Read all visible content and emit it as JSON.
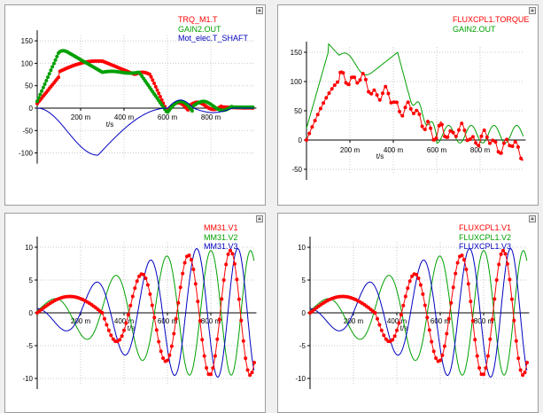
{
  "panels": [
    {
      "id": "p1",
      "legend": [
        {
          "label": "TRQ_M1.T",
          "color": "#ff0000"
        },
        {
          "label": "GAIN2.OUT",
          "color": "#00a000"
        },
        {
          "label": "Mot_elec.T_SHAFT",
          "color": "#0000c0"
        }
      ],
      "x_tick_labels": [
        "200 m",
        "400 m",
        "600 m",
        "800 m"
      ],
      "y_tick_labels": [
        "150",
        "100",
        "50",
        "0",
        "-50",
        "-100"
      ],
      "x_unit": "t/s"
    },
    {
      "id": "p2",
      "legend": [
        {
          "label": "FLUXCPL1.TORQUE",
          "color": "#ff0000"
        },
        {
          "label": "GAIN2.OUT",
          "color": "#00a000"
        }
      ],
      "x_tick_labels": [
        "200 m",
        "400 m",
        "600 m",
        "800 m"
      ],
      "y_tick_labels": [
        "150",
        "100",
        "50",
        "0",
        "-50"
      ],
      "x_unit": "t/s"
    },
    {
      "id": "p3",
      "legend": [
        {
          "label": "MM31.V1",
          "color": "#ff0000"
        },
        {
          "label": "MM31.V2",
          "color": "#00a000"
        },
        {
          "label": "MM31.V3",
          "color": "#0000c0"
        }
      ],
      "x_tick_labels": [
        "200 m",
        "400 m",
        "600 m",
        "800 m"
      ],
      "y_tick_labels": [
        "10",
        "5",
        "0",
        "-5",
        "-10"
      ],
      "x_unit": "t/s"
    },
    {
      "id": "p4",
      "legend": [
        {
          "label": "FLUXCPL1.V1",
          "color": "#ff0000"
        },
        {
          "label": "FLUXCPL1.V2",
          "color": "#00a000"
        },
        {
          "label": "FLUXCPL1.V3",
          "color": "#0000c0"
        }
      ],
      "x_tick_labels": [
        "200 m",
        "400 m",
        "600 m",
        "800 m"
      ],
      "y_tick_labels": [
        "10",
        "5",
        "0",
        "-5",
        "-10"
      ],
      "x_unit": "t/s"
    }
  ]
}
